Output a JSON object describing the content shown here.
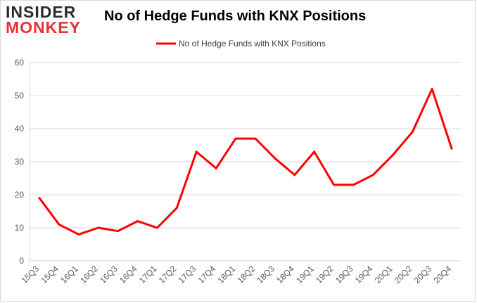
{
  "logo": {
    "line1": "INSIDER",
    "line2": "MONKEY"
  },
  "colors": {
    "series": "#ff0000",
    "grid": "#d9d9d9",
    "axis_text": "#595959",
    "logo_dark": "#2b2b2b",
    "logo_red": "#e8322f"
  },
  "chart_data": {
    "type": "line",
    "title": "No of Hedge Funds with KNX Positions",
    "xlabel": "",
    "ylabel": "",
    "categories": [
      "15Q3",
      "15Q4",
      "16Q1",
      "16Q2",
      "16Q3",
      "16Q4",
      "17Q1",
      "17Q2",
      "17Q3",
      "17Q4",
      "18Q1",
      "18Q2",
      "18Q3",
      "18Q4",
      "19Q1",
      "19Q2",
      "19Q3",
      "19Q4",
      "20Q1",
      "20Q2",
      "20Q3",
      "20Q4"
    ],
    "series": [
      {
        "name": "No of Hedge Funds with KNX Positions",
        "values": [
          19,
          11,
          8,
          10,
          9,
          12,
          10,
          16,
          33,
          28,
          37,
          37,
          31,
          26,
          33,
          23,
          23,
          26,
          32,
          39,
          52,
          34
        ]
      }
    ],
    "ylim": [
      0,
      60
    ],
    "yticks": [
      0,
      10,
      20,
      30,
      40,
      50,
      60
    ],
    "grid": true,
    "legend": "top-center"
  }
}
